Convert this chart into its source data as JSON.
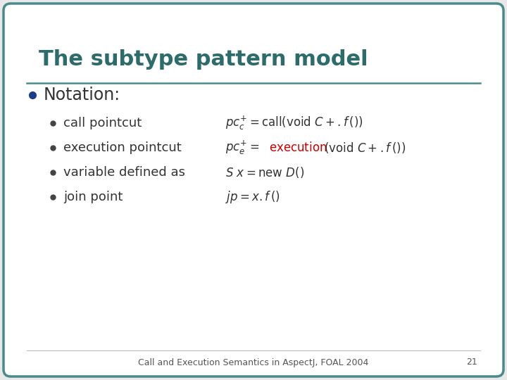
{
  "title": "The subtype pattern model",
  "title_color": "#2E6B6B",
  "bg_color": "#FFFFFF",
  "border_color": "#4A8A8A",
  "slide_bg": "#E8E8E8",
  "bullet_color": "#1E3A8A",
  "sub_bullet_color": "#444444",
  "text_color": "#333333",
  "footer_text": "Call and Execution Semantics in AspectJ, FOAL 2004",
  "footer_number": "21",
  "notation_label": "Notation:",
  "bullets": [
    "call pointcut",
    "execution pointcut",
    "variable defined as",
    "join point"
  ],
  "execution_color": "#CC0000",
  "title_fontsize": 22,
  "notation_fontsize": 17,
  "bullet_fontsize": 13,
  "formula_fontsize": 12
}
